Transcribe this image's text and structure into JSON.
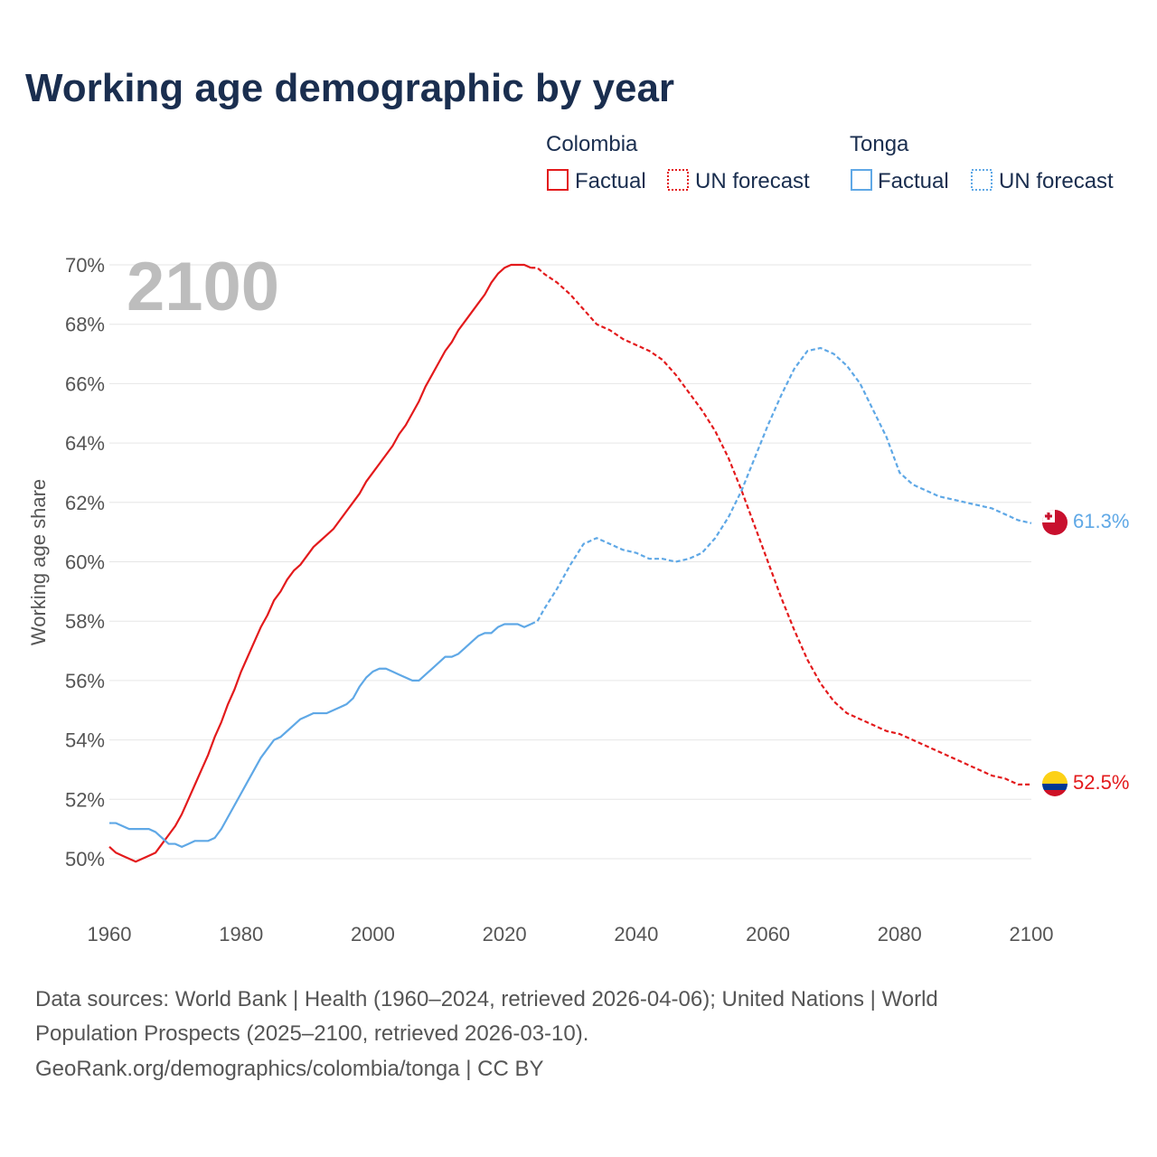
{
  "title": "Working age demographic by year",
  "watermark_year": "2100",
  "legend": {
    "groups": [
      {
        "country": "Colombia",
        "color": "#e31a1c",
        "items": [
          {
            "label": "Factual",
            "style": "solid"
          },
          {
            "label": "UN forecast",
            "style": "dotted"
          }
        ]
      },
      {
        "country": "Tonga",
        "color": "#5fa8e6",
        "items": [
          {
            "label": "Factual",
            "style": "solid"
          },
          {
            "label": "UN forecast",
            "style": "dotted"
          }
        ]
      }
    ]
  },
  "chart_data": {
    "type": "line",
    "title": "Working age demographic by year",
    "xlabel": "",
    "ylabel": "Working age share",
    "xlim": [
      1960,
      2100
    ],
    "ylim": [
      50,
      70
    ],
    "x_ticks": [
      1960,
      1980,
      2000,
      2020,
      2040,
      2060,
      2080,
      2100
    ],
    "y_ticks": [
      50,
      52,
      54,
      56,
      58,
      60,
      62,
      64,
      66,
      68,
      70
    ],
    "y_tick_labels": [
      "50%",
      "52%",
      "54%",
      "56%",
      "58%",
      "60%",
      "62%",
      "64%",
      "66%",
      "68%",
      "70%"
    ],
    "forecast_start": 2024,
    "series": [
      {
        "name": "Colombia",
        "color": "#e31a1c",
        "end_label": "52.5%",
        "flag": "colombia-flag",
        "points": [
          [
            1960,
            50.4
          ],
          [
            1961,
            50.2
          ],
          [
            1962,
            50.1
          ],
          [
            1963,
            50.0
          ],
          [
            1964,
            49.9
          ],
          [
            1965,
            50.0
          ],
          [
            1966,
            50.1
          ],
          [
            1967,
            50.2
          ],
          [
            1968,
            50.5
          ],
          [
            1969,
            50.8
          ],
          [
            1970,
            51.1
          ],
          [
            1971,
            51.5
          ],
          [
            1972,
            52.0
          ],
          [
            1973,
            52.5
          ],
          [
            1974,
            53.0
          ],
          [
            1975,
            53.5
          ],
          [
            1976,
            54.1
          ],
          [
            1977,
            54.6
          ],
          [
            1978,
            55.2
          ],
          [
            1979,
            55.7
          ],
          [
            1980,
            56.3
          ],
          [
            1981,
            56.8
          ],
          [
            1982,
            57.3
          ],
          [
            1983,
            57.8
          ],
          [
            1984,
            58.2
          ],
          [
            1985,
            58.7
          ],
          [
            1986,
            59.0
          ],
          [
            1987,
            59.4
          ],
          [
            1988,
            59.7
          ],
          [
            1989,
            59.9
          ],
          [
            1990,
            60.2
          ],
          [
            1991,
            60.5
          ],
          [
            1992,
            60.7
          ],
          [
            1993,
            60.9
          ],
          [
            1994,
            61.1
          ],
          [
            1995,
            61.4
          ],
          [
            1996,
            61.7
          ],
          [
            1997,
            62.0
          ],
          [
            1998,
            62.3
          ],
          [
            1999,
            62.7
          ],
          [
            2000,
            63.0
          ],
          [
            2001,
            63.3
          ],
          [
            2002,
            63.6
          ],
          [
            2003,
            63.9
          ],
          [
            2004,
            64.3
          ],
          [
            2005,
            64.6
          ],
          [
            2006,
            65.0
          ],
          [
            2007,
            65.4
          ],
          [
            2008,
            65.9
          ],
          [
            2009,
            66.3
          ],
          [
            2010,
            66.7
          ],
          [
            2011,
            67.1
          ],
          [
            2012,
            67.4
          ],
          [
            2013,
            67.8
          ],
          [
            2014,
            68.1
          ],
          [
            2015,
            68.4
          ],
          [
            2016,
            68.7
          ],
          [
            2017,
            69.0
          ],
          [
            2018,
            69.4
          ],
          [
            2019,
            69.7
          ],
          [
            2020,
            69.9
          ],
          [
            2021,
            70.0
          ],
          [
            2022,
            70.0
          ],
          [
            2023,
            70.0
          ],
          [
            2024,
            69.9
          ],
          [
            2025,
            69.9
          ],
          [
            2026,
            69.7
          ],
          [
            2028,
            69.4
          ],
          [
            2030,
            69.0
          ],
          [
            2032,
            68.5
          ],
          [
            2034,
            68.0
          ],
          [
            2036,
            67.8
          ],
          [
            2038,
            67.5
          ],
          [
            2040,
            67.3
          ],
          [
            2042,
            67.1
          ],
          [
            2044,
            66.8
          ],
          [
            2046,
            66.3
          ],
          [
            2048,
            65.7
          ],
          [
            2050,
            65.1
          ],
          [
            2052,
            64.4
          ],
          [
            2054,
            63.5
          ],
          [
            2056,
            62.4
          ],
          [
            2058,
            61.2
          ],
          [
            2060,
            60.0
          ],
          [
            2062,
            58.8
          ],
          [
            2064,
            57.7
          ],
          [
            2066,
            56.7
          ],
          [
            2068,
            55.9
          ],
          [
            2070,
            55.3
          ],
          [
            2072,
            54.9
          ],
          [
            2074,
            54.7
          ],
          [
            2076,
            54.5
          ],
          [
            2078,
            54.3
          ],
          [
            2080,
            54.2
          ],
          [
            2082,
            54.0
          ],
          [
            2084,
            53.8
          ],
          [
            2086,
            53.6
          ],
          [
            2088,
            53.4
          ],
          [
            2090,
            53.2
          ],
          [
            2092,
            53.0
          ],
          [
            2094,
            52.8
          ],
          [
            2096,
            52.7
          ],
          [
            2098,
            52.5
          ],
          [
            2100,
            52.5
          ]
        ]
      },
      {
        "name": "Tonga",
        "color": "#5fa8e6",
        "end_label": "61.3%",
        "flag": "tonga-flag",
        "points": [
          [
            1960,
            51.2
          ],
          [
            1961,
            51.2
          ],
          [
            1962,
            51.1
          ],
          [
            1963,
            51.0
          ],
          [
            1964,
            51.0
          ],
          [
            1965,
            51.0
          ],
          [
            1966,
            51.0
          ],
          [
            1967,
            50.9
          ],
          [
            1968,
            50.7
          ],
          [
            1969,
            50.5
          ],
          [
            1970,
            50.5
          ],
          [
            1971,
            50.4
          ],
          [
            1972,
            50.5
          ],
          [
            1973,
            50.6
          ],
          [
            1974,
            50.6
          ],
          [
            1975,
            50.6
          ],
          [
            1976,
            50.7
          ],
          [
            1977,
            51.0
          ],
          [
            1978,
            51.4
          ],
          [
            1979,
            51.8
          ],
          [
            1980,
            52.2
          ],
          [
            1981,
            52.6
          ],
          [
            1982,
            53.0
          ],
          [
            1983,
            53.4
          ],
          [
            1984,
            53.7
          ],
          [
            1985,
            54.0
          ],
          [
            1986,
            54.1
          ],
          [
            1987,
            54.3
          ],
          [
            1988,
            54.5
          ],
          [
            1989,
            54.7
          ],
          [
            1990,
            54.8
          ],
          [
            1991,
            54.9
          ],
          [
            1992,
            54.9
          ],
          [
            1993,
            54.9
          ],
          [
            1994,
            55.0
          ],
          [
            1995,
            55.1
          ],
          [
            1996,
            55.2
          ],
          [
            1997,
            55.4
          ],
          [
            1998,
            55.8
          ],
          [
            1999,
            56.1
          ],
          [
            2000,
            56.3
          ],
          [
            2001,
            56.4
          ],
          [
            2002,
            56.4
          ],
          [
            2003,
            56.3
          ],
          [
            2004,
            56.2
          ],
          [
            2005,
            56.1
          ],
          [
            2006,
            56.0
          ],
          [
            2007,
            56.0
          ],
          [
            2008,
            56.2
          ],
          [
            2009,
            56.4
          ],
          [
            2010,
            56.6
          ],
          [
            2011,
            56.8
          ],
          [
            2012,
            56.8
          ],
          [
            2013,
            56.9
          ],
          [
            2014,
            57.1
          ],
          [
            2015,
            57.3
          ],
          [
            2016,
            57.5
          ],
          [
            2017,
            57.6
          ],
          [
            2018,
            57.6
          ],
          [
            2019,
            57.8
          ],
          [
            2020,
            57.9
          ],
          [
            2021,
            57.9
          ],
          [
            2022,
            57.9
          ],
          [
            2023,
            57.8
          ],
          [
            2024,
            57.9
          ],
          [
            2025,
            58.0
          ],
          [
            2026,
            58.4
          ],
          [
            2028,
            59.1
          ],
          [
            2030,
            59.9
          ],
          [
            2032,
            60.6
          ],
          [
            2034,
            60.8
          ],
          [
            2036,
            60.6
          ],
          [
            2038,
            60.4
          ],
          [
            2040,
            60.3
          ],
          [
            2042,
            60.1
          ],
          [
            2044,
            60.1
          ],
          [
            2046,
            60.0
          ],
          [
            2048,
            60.1
          ],
          [
            2050,
            60.3
          ],
          [
            2052,
            60.8
          ],
          [
            2054,
            61.5
          ],
          [
            2056,
            62.4
          ],
          [
            2058,
            63.5
          ],
          [
            2060,
            64.6
          ],
          [
            2062,
            65.6
          ],
          [
            2064,
            66.5
          ],
          [
            2066,
            67.1
          ],
          [
            2068,
            67.2
          ],
          [
            2070,
            67.0
          ],
          [
            2072,
            66.6
          ],
          [
            2074,
            66.0
          ],
          [
            2076,
            65.1
          ],
          [
            2078,
            64.2
          ],
          [
            2080,
            63.0
          ],
          [
            2082,
            62.6
          ],
          [
            2084,
            62.4
          ],
          [
            2086,
            62.2
          ],
          [
            2088,
            62.1
          ],
          [
            2090,
            62.0
          ],
          [
            2092,
            61.9
          ],
          [
            2094,
            61.8
          ],
          [
            2096,
            61.6
          ],
          [
            2098,
            61.4
          ],
          [
            2100,
            61.3
          ]
        ]
      }
    ]
  },
  "footer": {
    "line1": "Data sources: World Bank | Health (1960–2024, retrieved 2026-04-06); United Nations | World",
    "line2": "Population Prospects (2025–2100, retrieved 2026-03-10).",
    "line3": "GeoRank.org/demographics/colombia/tonga | CC BY"
  }
}
